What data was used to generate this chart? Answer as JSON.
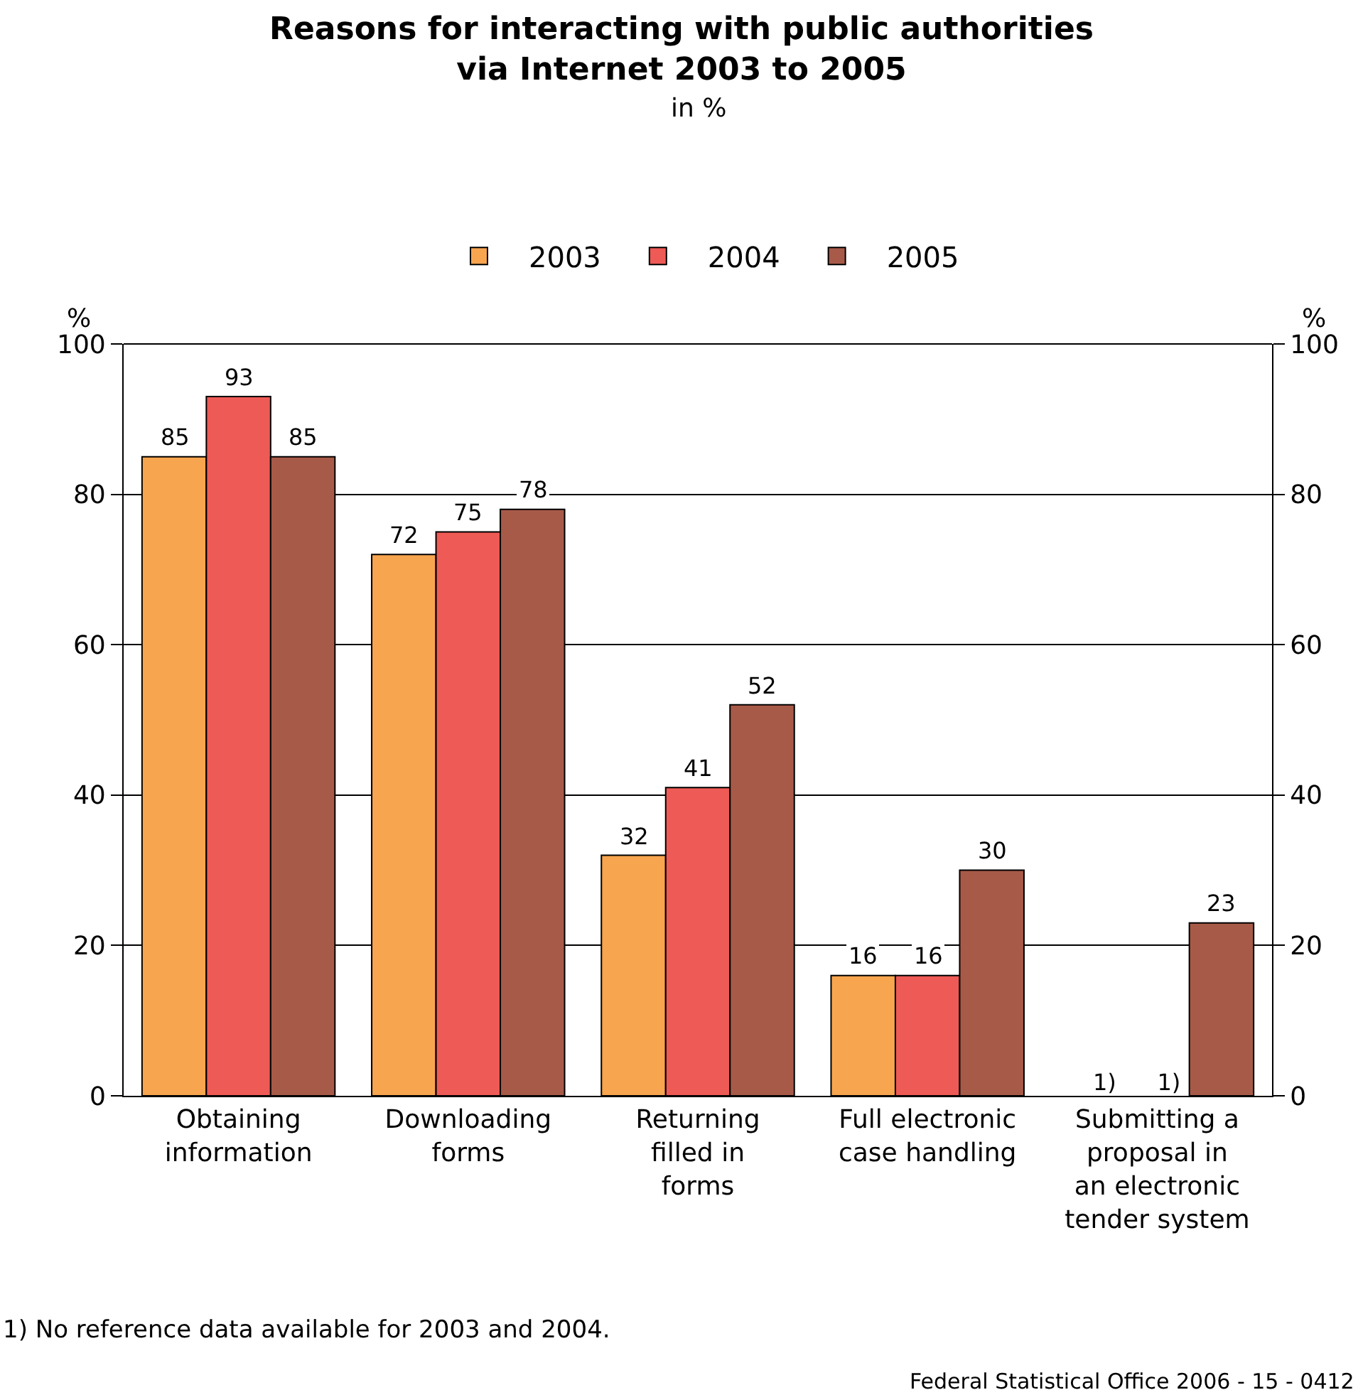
{
  "chart_data": {
    "type": "bar",
    "title": "Reasons for interacting with public authorities\nvia Internet 2003 to 2005",
    "subtitle": "in %",
    "ylabel": "%",
    "y2label": "%",
    "categories": [
      "Obtaining\ninformation",
      "Downloading\nforms",
      "Returning\nfilled in\nforms",
      "Full electronic\ncase handling",
      "Submitting a\nproposal in\nan electronic\ntender system"
    ],
    "series": [
      {
        "name": "2003",
        "color": "#f7a54f",
        "values": [
          85,
          72,
          32,
          16,
          null
        ],
        "value_labels": [
          "85",
          "72",
          "32",
          "16",
          "1)"
        ]
      },
      {
        "name": "2004",
        "color": "#ee5a55",
        "values": [
          93,
          75,
          41,
          16,
          null
        ],
        "value_labels": [
          "93",
          "75",
          "41",
          "16",
          "1)"
        ]
      },
      {
        "name": "2005",
        "color": "#a85a48",
        "values": [
          85,
          78,
          52,
          30,
          23
        ],
        "value_labels": [
          "85",
          "78",
          "52",
          "30",
          "23"
        ]
      }
    ],
    "ylim": [
      0,
      100
    ],
    "yticks": [
      0,
      20,
      40,
      60,
      80,
      100
    ],
    "y2lim": [
      0,
      100
    ],
    "y2ticks": [
      0,
      20,
      40,
      60,
      80,
      100
    ],
    "grid": "y",
    "legend": "top",
    "annotations": [
      "1) No reference data available for 2003 and 2004.",
      "Federal Statistical Office 2006 - 15 - 0412"
    ]
  }
}
